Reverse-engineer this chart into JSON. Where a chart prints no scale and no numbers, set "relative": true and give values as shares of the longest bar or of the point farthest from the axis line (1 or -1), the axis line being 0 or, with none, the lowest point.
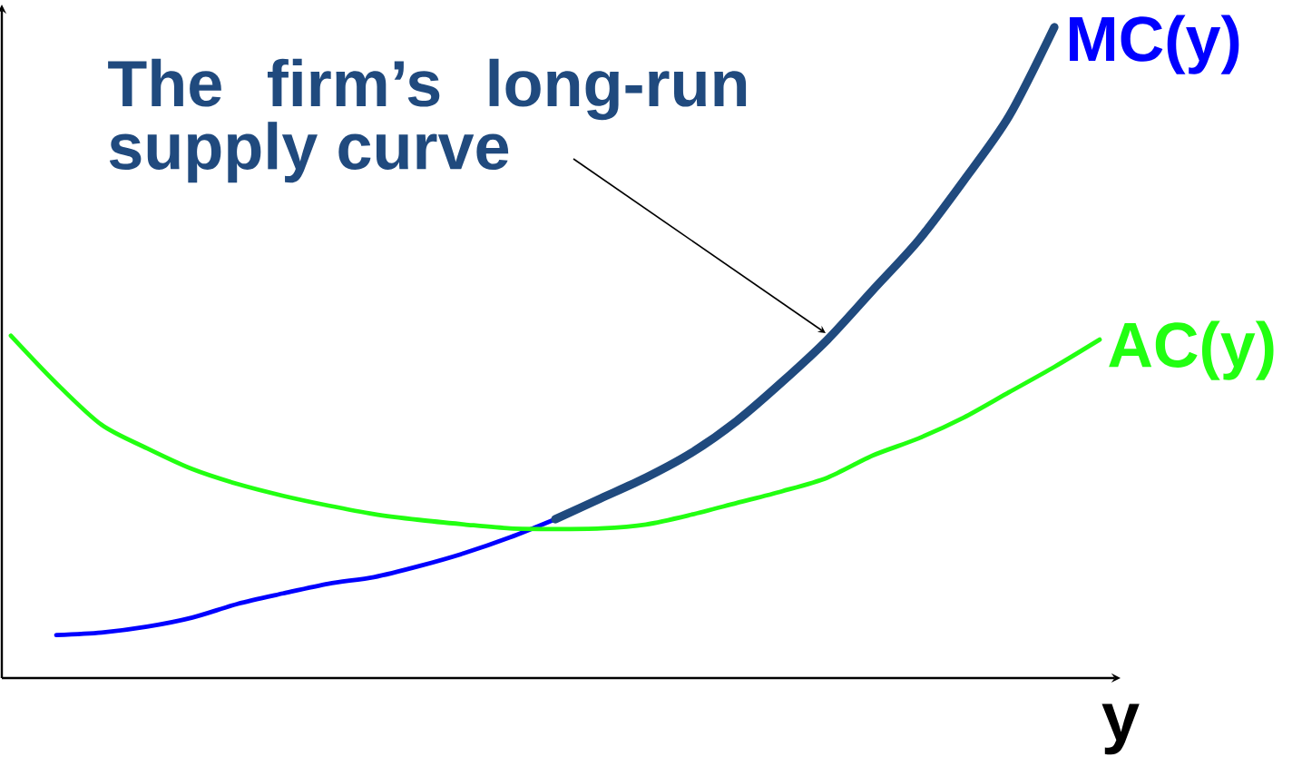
{
  "chart_data": {
    "type": "line",
    "relative": true,
    "xlabel": "y",
    "categories": [
      null,
      null,
      null,
      null,
      null,
      null,
      null,
      null,
      null,
      null,
      null,
      null,
      null,
      null,
      null,
      null,
      null,
      null,
      null,
      null,
      null,
      null,
      null,
      null,
      null
    ],
    "series": [
      {
        "name": "MC(y)",
        "color": "#0000ff",
        "values": [
          null,
          0.066,
          0.07,
          0.079,
          0.093,
          0.114,
          0.13,
          0.145,
          0.155,
          0.172,
          0.192,
          0.216,
          0.244,
          null,
          null,
          null,
          null,
          null,
          null,
          null,
          null,
          null,
          null,
          null,
          null
        ]
      },
      {
        "name": "AC(y)",
        "color": "#22ff11",
        "values": [
          0.526,
          0.453,
          0.389,
          0.353,
          0.321,
          0.298,
          0.28,
          0.265,
          0.252,
          0.243,
          0.236,
          0.23,
          0.229,
          0.23,
          0.236,
          0.251,
          0.269,
          0.287,
          0.308,
          0.342,
          0.368,
          0.4,
          0.439,
          0.478,
          0.52
        ]
      },
      {
        "name": "The firm’s long-run supply curve",
        "color": "#204a7e",
        "values": [
          null,
          null,
          null,
          null,
          null,
          null,
          null,
          null,
          null,
          null,
          null,
          null,
          0.244,
          0.276,
          0.308,
          0.346,
          0.395,
          0.455,
          0.52,
          0.596,
          0.672,
          0.764,
          0.863,
          1,
          null
        ]
      }
    ]
  }
}
